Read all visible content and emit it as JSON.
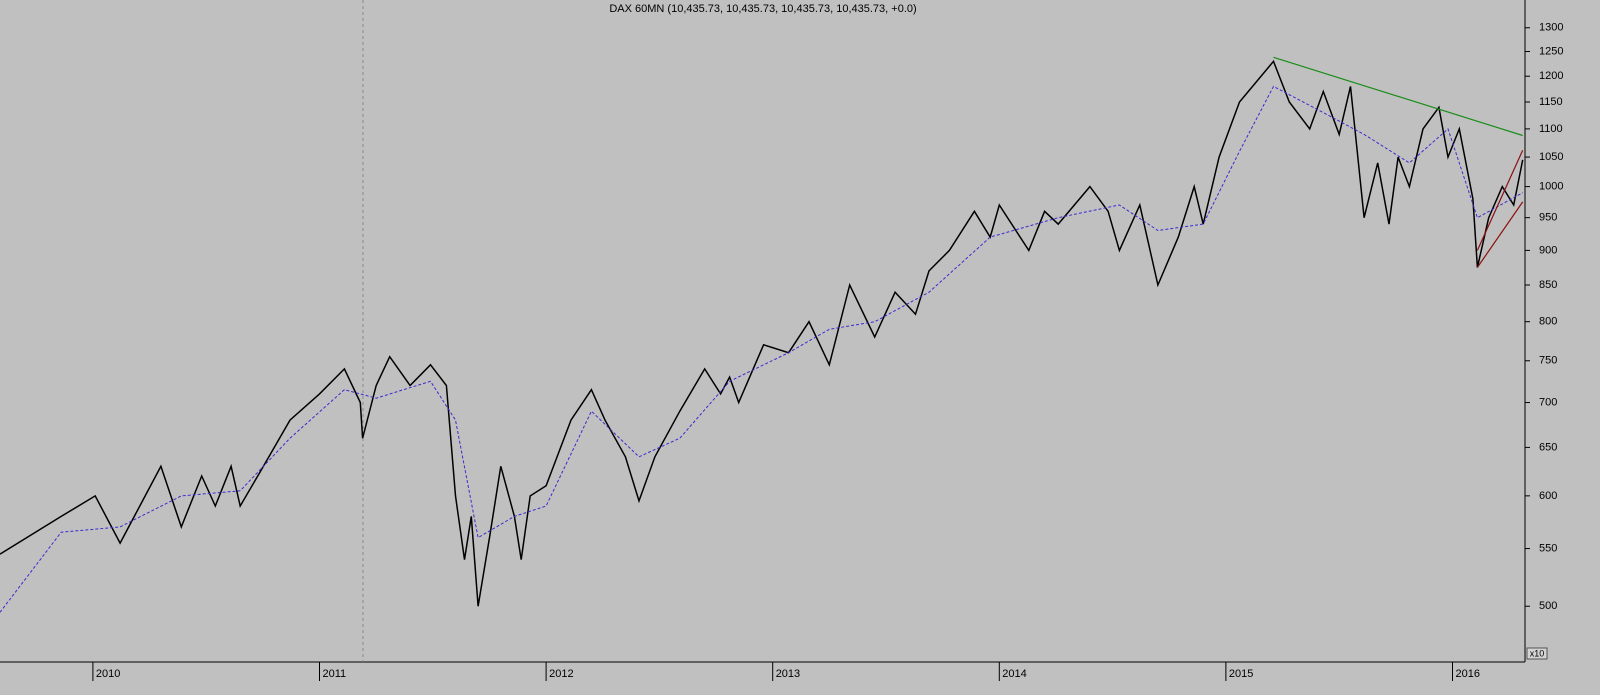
{
  "chart_data": {
    "type": "line",
    "title": "DAX 60MN (10,435.73, 10,435.73, 10,435.73, 10,435.73, +0.0)",
    "log_scale": true,
    "axis_unit": "x10",
    "xlim": [
      2009.59,
      2016.32
    ],
    "xticks": [
      2010,
      2011,
      2012,
      2013,
      2014,
      2015,
      2016
    ],
    "ylim": [
      456,
      1361
    ],
    "yticks": [
      500,
      550,
      600,
      650,
      700,
      750,
      800,
      850,
      900,
      950,
      1000,
      1050,
      1100,
      1150,
      1200,
      1250,
      1300
    ],
    "series": [
      {
        "color": "#000000",
        "x": [
          2009.59,
          2009.86,
          2010.01,
          2010.12,
          2010.3,
          2010.39,
          2010.48,
          2010.54,
          2010.61,
          2010.65,
          2010.74,
          2010.87,
          2011.0,
          2011.11,
          2011.18,
          2011.19,
          2011.25,
          2011.31,
          2011.4,
          2011.49,
          2011.56,
          2011.6,
          2011.64,
          2011.67,
          2011.7,
          2011.75,
          2011.8,
          2011.86,
          2011.89,
          2011.93,
          2012.0,
          2012.11,
          2012.2,
          2012.26,
          2012.35,
          2012.41,
          2012.48,
          2012.59,
          2012.7,
          2012.77,
          2012.81,
          2012.85,
          2012.96,
          2013.07,
          2013.16,
          2013.25,
          2013.34,
          2013.45,
          2013.54,
          2013.63,
          2013.69,
          2013.78,
          2013.89,
          2013.96,
          2014.0,
          2014.13,
          2014.2,
          2014.26,
          2014.4,
          2014.48,
          2014.53,
          2014.62,
          2014.7,
          2014.79,
          2014.86,
          2014.9,
          2014.97,
          2015.06,
          2015.21,
          2015.28,
          2015.37,
          2015.43,
          2015.5,
          2015.55,
          2015.61,
          2015.67,
          2015.72,
          2015.76,
          2015.81,
          2015.87,
          2015.94,
          2015.98,
          2016.03,
          2016.09,
          2016.11,
          2016.16,
          2016.22,
          2016.27,
          2016.31
        ],
        "values": [
          545,
          580,
          600,
          555,
          630,
          570,
          620,
          590,
          630,
          590,
          625,
          680,
          710,
          740,
          700,
          660,
          720,
          755,
          720,
          745,
          720,
          600,
          540,
          580,
          500,
          560,
          630,
          580,
          540,
          600,
          610,
          680,
          715,
          680,
          640,
          595,
          640,
          690,
          740,
          710,
          730,
          700,
          770,
          760,
          800,
          745,
          850,
          780,
          840,
          810,
          870,
          900,
          960,
          920,
          970,
          900,
          960,
          940,
          1000,
          960,
          900,
          970,
          850,
          920,
          1000,
          940,
          1050,
          1150,
          1230,
          1150,
          1100,
          1170,
          1090,
          1180,
          950,
          1040,
          940,
          1050,
          1000,
          1100,
          1140,
          1050,
          1100,
          980,
          875,
          950,
          1000,
          970,
          1045
        ]
      },
      {
        "color": "#3a2bd0",
        "dashed": true,
        "x": [
          2009.59,
          2009.86,
          2010.12,
          2010.39,
          2010.65,
          2010.87,
          2011.11,
          2011.25,
          2011.49,
          2011.6,
          2011.7,
          2011.86,
          2012.0,
          2012.2,
          2012.41,
          2012.59,
          2012.81,
          2013.07,
          2013.25,
          2013.45,
          2013.69,
          2013.96,
          2014.26,
          2014.53,
          2014.7,
          2014.9,
          2015.06,
          2015.21,
          2015.43,
          2015.61,
          2015.81,
          2015.98,
          2016.11,
          2016.31
        ],
        "values": [
          495,
          565,
          570,
          600,
          605,
          660,
          715,
          705,
          725,
          680,
          560,
          580,
          590,
          690,
          640,
          660,
          725,
          760,
          790,
          800,
          840,
          920,
          950,
          970,
          930,
          940,
          1060,
          1180,
          1130,
          1090,
          1040,
          1100,
          950,
          990
        ]
      }
    ],
    "trendlines": [
      {
        "color": "#1a8c1a",
        "x": [
          2015.21,
          2016.31
        ],
        "values": [
          1238,
          1088
        ]
      },
      {
        "color": "#8b1010",
        "x": [
          2016.11,
          2016.31
        ],
        "values": [
          875,
          975
        ]
      },
      {
        "color": "#8b1010",
        "x": [
          2016.11,
          2016.31
        ],
        "values": [
          900,
          1062
        ]
      }
    ]
  }
}
